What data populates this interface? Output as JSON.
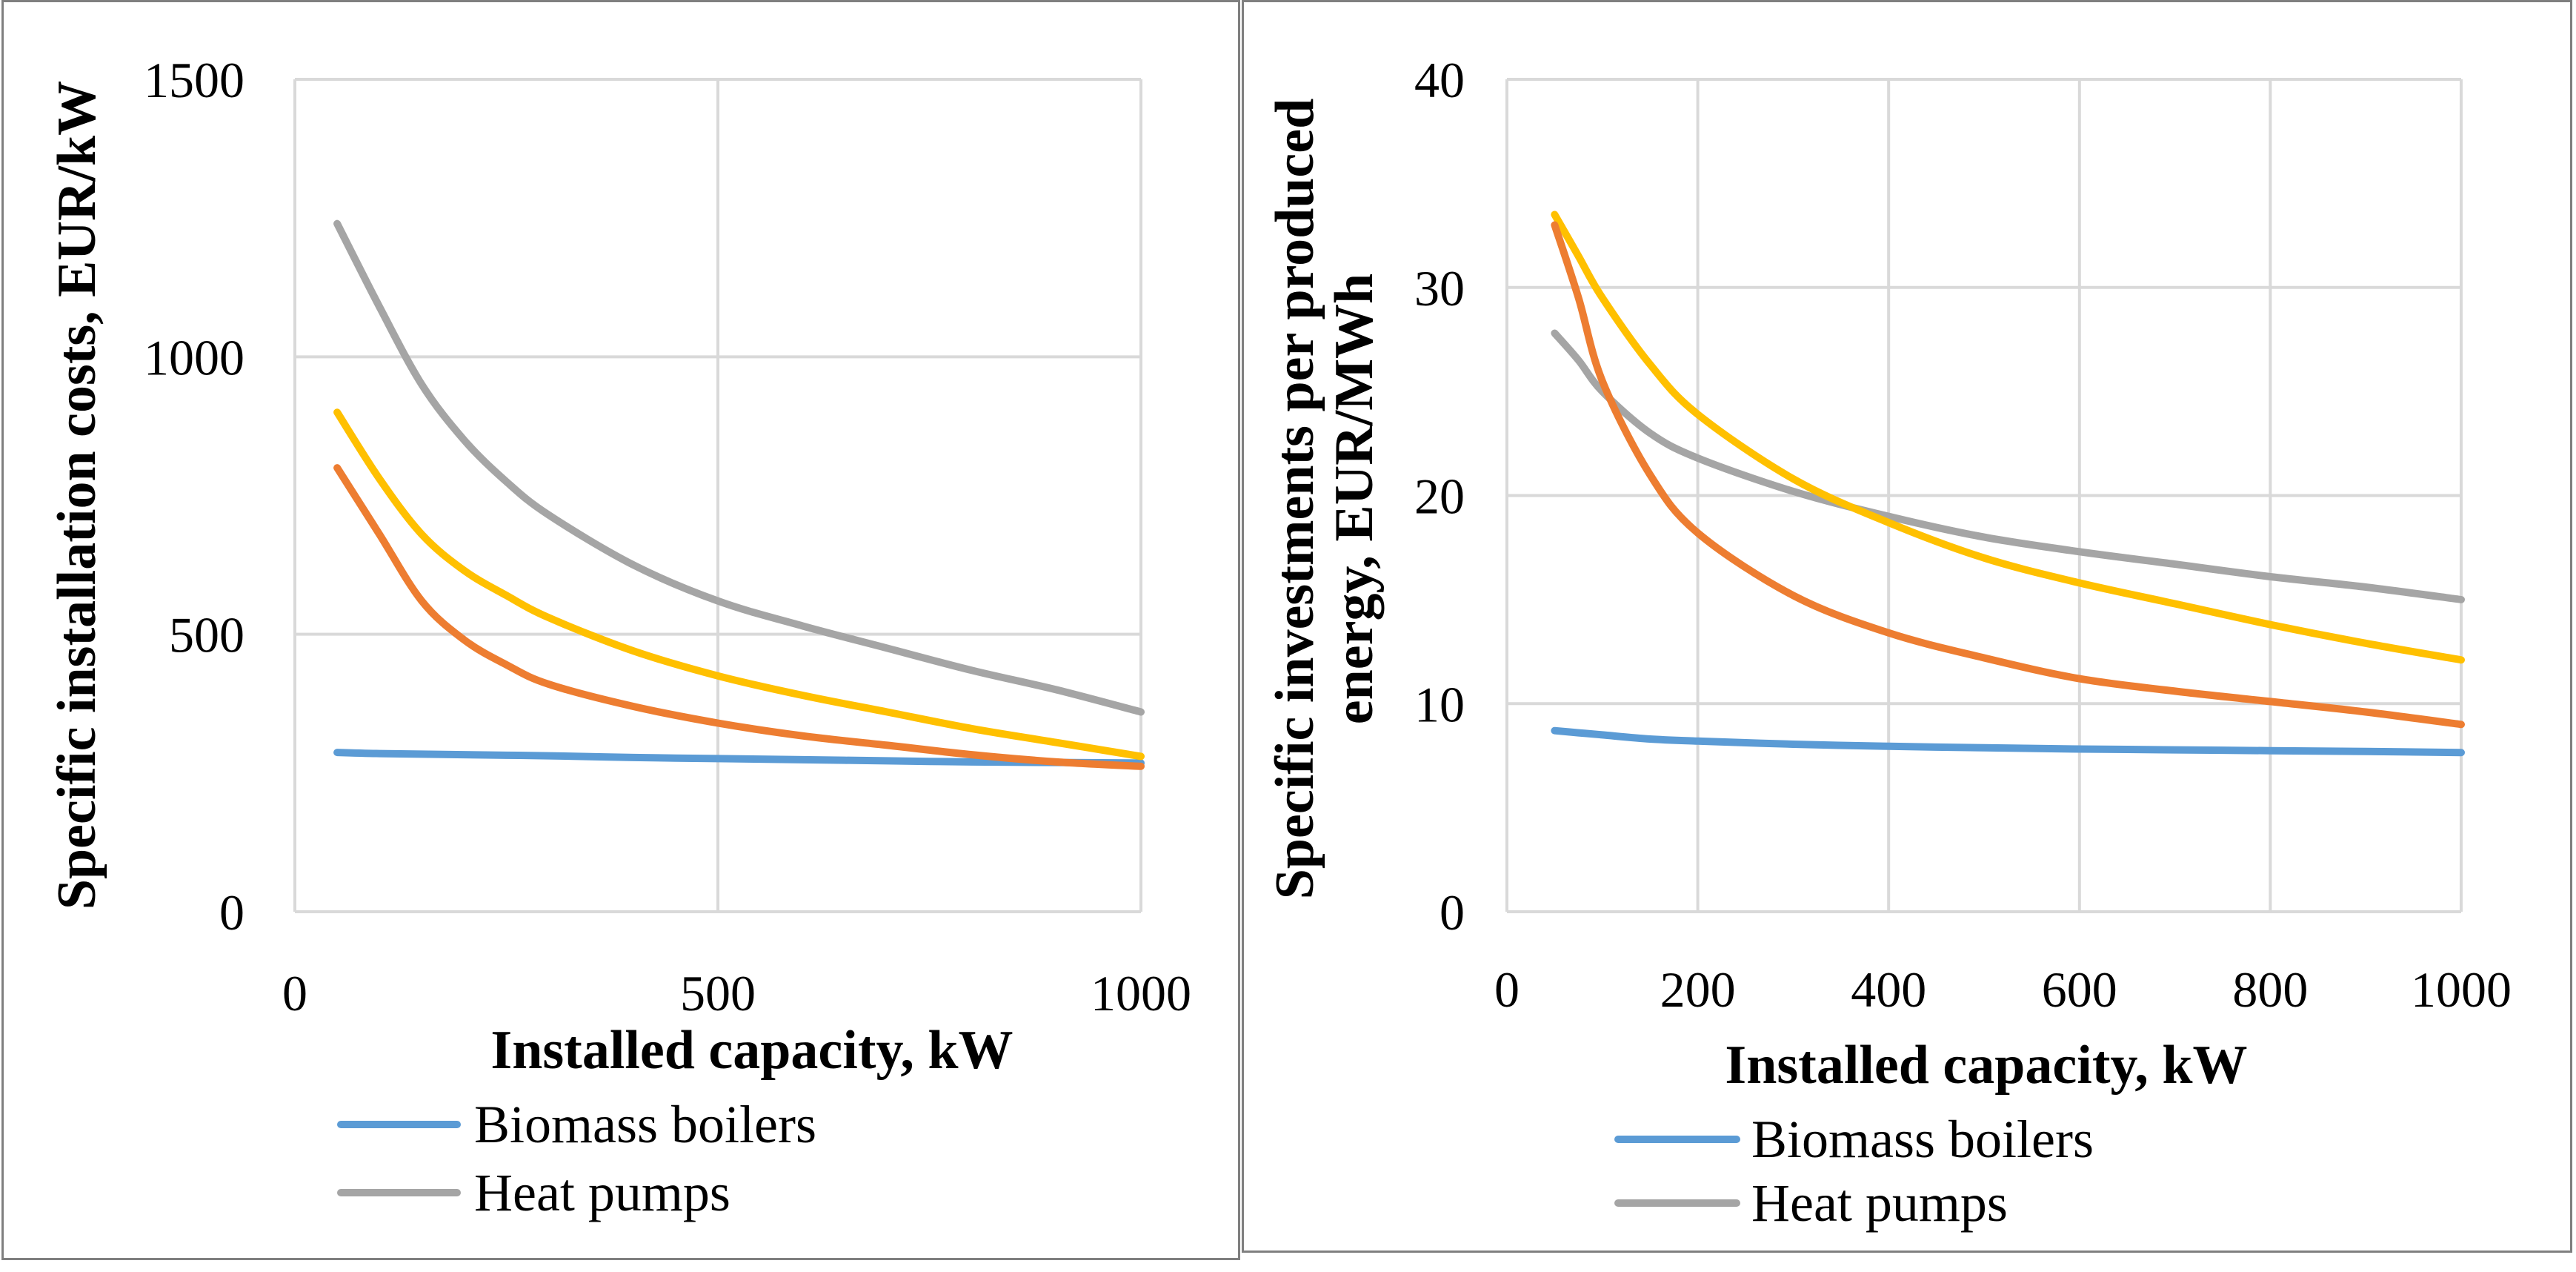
{
  "chart_data": [
    {
      "type": "line",
      "title": "",
      "xlabel": "Installed capacity, kW",
      "ylabel": "Specific installation costs, EUR/kW",
      "xlim": [
        0,
        1000
      ],
      "ylim": [
        0,
        1500
      ],
      "xticks": [
        0,
        500,
        1000
      ],
      "yticks": [
        0,
        500,
        1000,
        1500
      ],
      "grid": true,
      "legend_position": "bottom",
      "x": [
        50,
        100,
        150,
        200,
        250,
        300,
        400,
        500,
        600,
        700,
        800,
        900,
        1000
      ],
      "series": [
        {
          "name": "Biomass boilers",
          "color": "#5b9bd5",
          "in_legend": true,
          "values": [
            287,
            285,
            284,
            283,
            282,
            281,
            278,
            276,
            274,
            272,
            270,
            269,
            268
          ]
        },
        {
          "name": "Heat pumps",
          "color": "#a5a5a5",
          "in_legend": true,
          "values": [
            1240,
            1090,
            950,
            850,
            775,
            715,
            625,
            560,
            515,
            475,
            435,
            400,
            360
          ]
        },
        {
          "name": "",
          "color": "#ffc000",
          "in_legend": false,
          "values": [
            900,
            780,
            680,
            615,
            570,
            530,
            470,
            425,
            390,
            360,
            330,
            305,
            280
          ]
        },
        {
          "name": "",
          "color": "#ed7d31",
          "in_legend": false,
          "values": [
            800,
            680,
            560,
            490,
            445,
            410,
            370,
            340,
            317,
            300,
            283,
            270,
            262
          ]
        }
      ]
    },
    {
      "type": "line",
      "title": "",
      "xlabel": "Installed capacity, kW",
      "ylabel_lines": [
        "Specific investments per produced",
        "energy, EUR/MWh"
      ],
      "xlim": [
        0,
        1000
      ],
      "ylim": [
        0,
        40
      ],
      "xticks": [
        0,
        200,
        400,
        600,
        800,
        1000
      ],
      "yticks": [
        0,
        10,
        20,
        30,
        40
      ],
      "grid": true,
      "legend_position": "bottom",
      "x": [
        50,
        75,
        100,
        150,
        200,
        300,
        400,
        500,
        600,
        700,
        800,
        900,
        1000
      ],
      "series": [
        {
          "name": "Biomass boilers",
          "color": "#5b9bd5",
          "in_legend": true,
          "values": [
            8.7,
            8.6,
            8.5,
            8.3,
            8.2,
            8.05,
            7.95,
            7.88,
            7.82,
            7.78,
            7.74,
            7.7,
            7.65
          ]
        },
        {
          "name": "Heat pumps",
          "color": "#a5a5a5",
          "in_legend": true,
          "values": [
            27.8,
            26.5,
            25.0,
            23.0,
            21.8,
            20.2,
            19.0,
            18.0,
            17.3,
            16.7,
            16.1,
            15.6,
            15.0
          ]
        },
        {
          "name": "",
          "color": "#ffc000",
          "in_legend": false,
          "values": [
            33.5,
            31.5,
            29.5,
            26.3,
            23.9,
            20.8,
            18.7,
            17.0,
            15.8,
            14.8,
            13.8,
            12.9,
            12.1
          ]
        },
        {
          "name": "",
          "color": "#ed7d31",
          "in_legend": false,
          "values": [
            33.0,
            29.5,
            25.5,
            21.0,
            18.2,
            15.2,
            13.4,
            12.2,
            11.2,
            10.6,
            10.1,
            9.6,
            9.0
          ]
        }
      ]
    }
  ]
}
